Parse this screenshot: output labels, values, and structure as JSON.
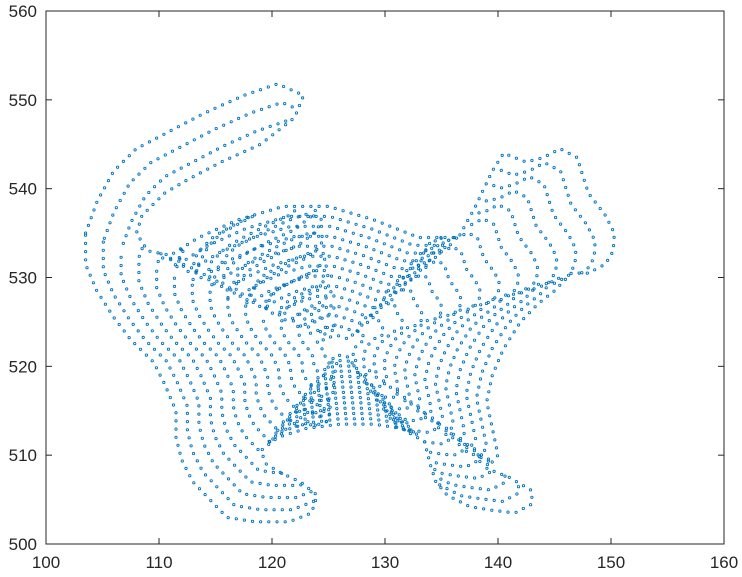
{
  "chart_data": {
    "type": "scatter",
    "title": "",
    "xlabel": "",
    "ylabel": "",
    "xlim": [
      100,
      160
    ],
    "ylim": [
      500,
      560
    ],
    "xticks": [
      100,
      110,
      120,
      130,
      140,
      150,
      160
    ],
    "yticks": [
      500,
      510,
      520,
      530,
      540,
      550,
      560
    ],
    "xtick_labels": [
      "100",
      "110",
      "120",
      "130",
      "140",
      "150",
      "160"
    ],
    "ytick_labels": [
      "500",
      "510",
      "520",
      "530",
      "540",
      "550",
      "560"
    ],
    "grid": false,
    "legend": "none",
    "marker_color": "#0072BD",
    "shape": "cat silhouette point cloud (stroked concentric contour rings)",
    "outline": [
      [
        103.5,
        535.0
      ],
      [
        104.5,
        538.5
      ],
      [
        106.0,
        542.0
      ],
      [
        108.0,
        544.5
      ],
      [
        111.0,
        546.5
      ],
      [
        114.0,
        548.5
      ],
      [
        117.5,
        550.5
      ],
      [
        120.5,
        551.8
      ],
      [
        122.8,
        550.5
      ],
      [
        122.0,
        548.0
      ],
      [
        119.0,
        545.0
      ],
      [
        115.5,
        543.0
      ],
      [
        112.5,
        541.0
      ],
      [
        110.5,
        539.5
      ],
      [
        108.5,
        537.0
      ],
      [
        108.0,
        535.0
      ],
      [
        109.0,
        533.0
      ],
      [
        111.0,
        532.5
      ],
      [
        113.5,
        534.5
      ],
      [
        117.0,
        536.5
      ],
      [
        121.0,
        538.0
      ],
      [
        125.0,
        538.0
      ],
      [
        129.0,
        536.5
      ],
      [
        133.0,
        534.5
      ],
      [
        136.5,
        534.5
      ],
      [
        138.0,
        538.0
      ],
      [
        139.5,
        542.0
      ],
      [
        140.5,
        544.0
      ],
      [
        142.5,
        543.0
      ],
      [
        144.0,
        543.5
      ],
      [
        145.5,
        544.5
      ],
      [
        147.0,
        543.5
      ],
      [
        147.5,
        541.5
      ],
      [
        148.0,
        539.5
      ],
      [
        149.5,
        537.0
      ],
      [
        150.3,
        535.0
      ],
      [
        150.2,
        533.0
      ],
      [
        149.5,
        531.5
      ],
      [
        148.0,
        530.5
      ],
      [
        146.5,
        530.5
      ],
      [
        145.0,
        528.5
      ],
      [
        143.5,
        527.0
      ],
      [
        142.0,
        525.0
      ],
      [
        140.5,
        522.0
      ],
      [
        139.5,
        519.0
      ],
      [
        139.0,
        516.0
      ],
      [
        139.5,
        513.0
      ],
      [
        140.0,
        510.0
      ],
      [
        139.0,
        508.5
      ],
      [
        141.0,
        507.5
      ],
      [
        143.0,
        506.0
      ],
      [
        143.0,
        504.5
      ],
      [
        141.5,
        503.5
      ],
      [
        139.5,
        503.8
      ],
      [
        137.5,
        504.2
      ],
      [
        135.5,
        505.5
      ],
      [
        134.5,
        507.0
      ],
      [
        134.0,
        509.0
      ],
      [
        133.5,
        511.5
      ],
      [
        131.5,
        513.0
      ],
      [
        129.0,
        513.5
      ],
      [
        126.0,
        513.5
      ],
      [
        123.0,
        513.0
      ],
      [
        120.5,
        512.0
      ],
      [
        119.0,
        510.5
      ],
      [
        119.5,
        509.0
      ],
      [
        120.8,
        508.0
      ],
      [
        122.5,
        507.0
      ],
      [
        124.0,
        505.5
      ],
      [
        123.5,
        503.5
      ],
      [
        121.5,
        502.5
      ],
      [
        118.5,
        502.5
      ],
      [
        116.0,
        503.0
      ],
      [
        114.5,
        505.0
      ],
      [
        113.0,
        507.0
      ],
      [
        112.0,
        509.5
      ],
      [
        111.5,
        512.0
      ],
      [
        111.5,
        515.0
      ],
      [
        110.5,
        518.0
      ],
      [
        109.5,
        520.5
      ],
      [
        107.5,
        523.0
      ],
      [
        106.0,
        525.5
      ],
      [
        104.5,
        528.5
      ],
      [
        103.5,
        531.5
      ]
    ]
  }
}
